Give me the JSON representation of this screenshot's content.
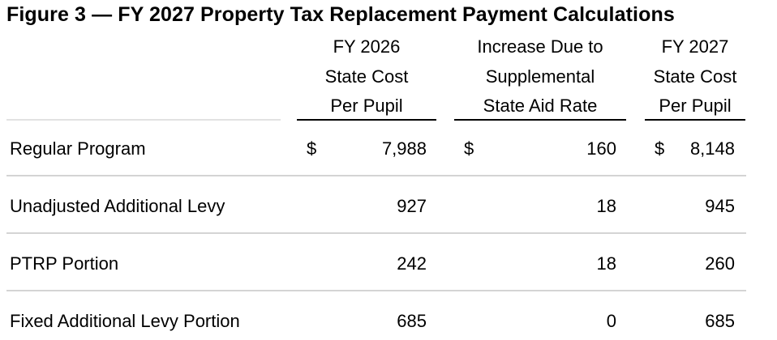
{
  "figure": {
    "title": "Figure 3 — FY 2027 Property Tax Replacement Payment Calculations"
  },
  "table": {
    "columns": [
      {
        "lines": [
          "FY 2026",
          "State Cost",
          "Per Pupil"
        ]
      },
      {
        "lines": [
          "Increase Due to",
          "Supplemental",
          "State Aid Rate"
        ]
      },
      {
        "lines": [
          "FY 2027",
          "State Cost",
          "Per Pupil"
        ]
      }
    ],
    "rows": [
      {
        "label": "Regular Program",
        "fy2026": "7,988",
        "increase": "160",
        "fy2027": "8,148",
        "currency": "$"
      },
      {
        "label": "Unadjusted Additional Levy",
        "fy2026": "927",
        "increase": "18",
        "fy2027": "945"
      },
      {
        "label": "PTRP Portion",
        "fy2026": "242",
        "increase": "18",
        "fy2027": "260"
      },
      {
        "label": "Fixed Additional Levy Portion",
        "fy2026": "685",
        "increase": "0",
        "fy2027": "685"
      }
    ]
  }
}
